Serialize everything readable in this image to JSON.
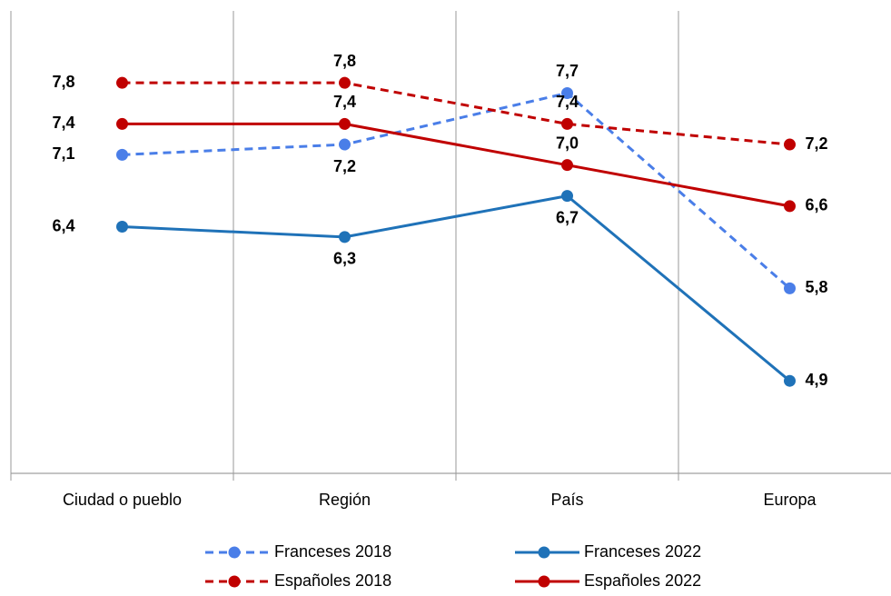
{
  "chart_data": {
    "type": "line",
    "categories": [
      "Ciudad o pueblo",
      "Región",
      "País",
      "Europa"
    ],
    "ylim": [
      4,
      8.5
    ],
    "legend": "bottom",
    "series": [
      {
        "name": "Franceses 2018",
        "color": "#4a7ee8",
        "dashed": true,
        "values": [
          7.1,
          7.2,
          7.7,
          5.8
        ],
        "value_labels": [
          "7,1",
          "7,2",
          "7,7",
          "5,8"
        ]
      },
      {
        "name": "Franceses 2022",
        "color": "#1f72b8",
        "dashed": false,
        "values": [
          6.4,
          6.3,
          6.7,
          4.9
        ],
        "value_labels": [
          "6,4",
          "6,3",
          "6,7",
          "4,9"
        ]
      },
      {
        "name": "Españoles 2018",
        "color": "#c00000",
        "dashed": true,
        "values": [
          7.8,
          7.8,
          7.4,
          7.2
        ],
        "value_labels": [
          "7,8",
          "7,8",
          "7,4",
          "7,2"
        ]
      },
      {
        "name": "Españoles 2022",
        "color": "#c00000",
        "dashed": false,
        "values": [
          7.4,
          7.4,
          7.0,
          6.6
        ],
        "value_labels": [
          "7,4",
          "7,4",
          "7,0",
          "6,6"
        ]
      }
    ]
  }
}
